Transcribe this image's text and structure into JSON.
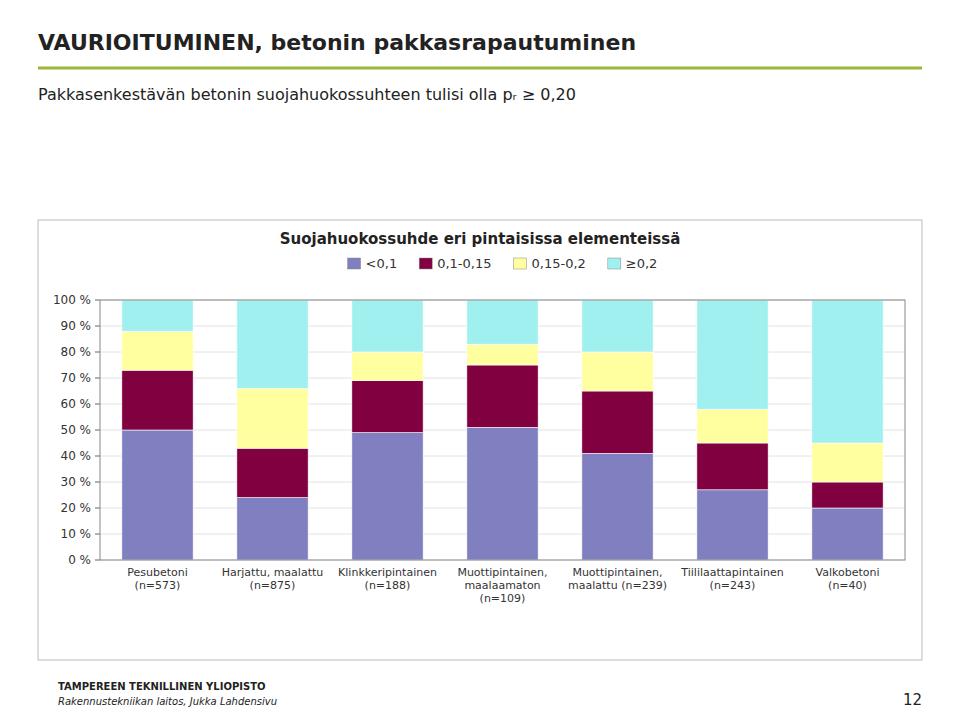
{
  "chart_data": {
    "type": "bar",
    "stacked": true,
    "title": "VAURIOITUMINEN, betonin pakkasrapautuminen",
    "subtitle": "Pakkasenkestävän betonin suojahuokossuhteen tulisi olla pᵣ ≥ 0,20",
    "annotations": [
      "Suojahuokossuhde eri pintaisissa elementeissä",
      "TAMPEREEN TEKNILLINEN YLIOPISTO",
      "Rakennustekniikan laitos, Jukka Lahdensivu",
      "12"
    ],
    "categories": [
      "Pesubetoni\n(n=573)",
      "Harjattu, maalattu\n(n=875)",
      "Klinkkeripintainen\n(n=188)",
      "Muottipintainen,\nmaalaamaton\n(n=109)",
      "Muottipintainen,\nmaalattu (n=239)",
      "Tiililaattapintainen\n(n=243)",
      "Valkobetoni\n(n=40)"
    ],
    "series": [
      {
        "name": "<0,1",
        "color": "#8080c0",
        "values": [
          50,
          24,
          49,
          51,
          41,
          27,
          20
        ]
      },
      {
        "name": "0,1-0,15",
        "color": "#800040",
        "values": [
          23,
          19,
          20,
          24,
          24,
          18,
          10
        ]
      },
      {
        "name": "0,15-0,2",
        "color": "#ffffa0",
        "values": [
          15,
          23,
          11,
          8,
          15,
          13,
          15
        ]
      },
      {
        "name": "≥0,2",
        "color": "#a0f0f0",
        "values": [
          12,
          34,
          20,
          17,
          20,
          42,
          55
        ]
      }
    ],
    "ylim": [
      0,
      100
    ],
    "yticks": [
      {
        "value": 0,
        "label": "0 %"
      },
      {
        "value": 10,
        "label": "10 %"
      },
      {
        "value": 20,
        "label": "20 %"
      },
      {
        "value": 30,
        "label": "30 %"
      },
      {
        "value": 40,
        "label": "40 %"
      },
      {
        "value": 50,
        "label": "50 %"
      },
      {
        "value": 60,
        "label": "60 %"
      },
      {
        "value": 70,
        "label": "70 %"
      },
      {
        "value": 80,
        "label": "80 %"
      },
      {
        "value": 90,
        "label": "90 %"
      },
      {
        "value": 100,
        "label": "100 %"
      }
    ],
    "grid": true,
    "legend": "top"
  }
}
